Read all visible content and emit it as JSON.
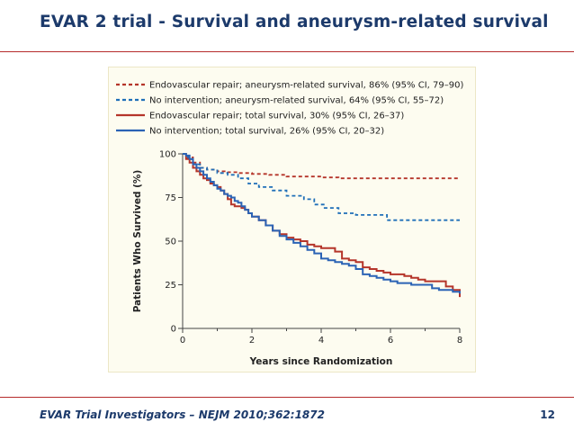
{
  "slide": {
    "title": "EVAR 2 trial - Survival and aneurysm-related survival",
    "citation": "EVAR Trial Investigators – NEJM 2010;362:1872",
    "page_number": "12",
    "accent_color": "#b52b2b",
    "title_color": "#1c3a6b"
  },
  "chart_data": {
    "type": "line",
    "title": "",
    "xlabel": "Years since Randomization",
    "ylabel": "Patients Who Survived (%)",
    "xlim": [
      0,
      8
    ],
    "ylim": [
      0,
      100
    ],
    "xticks": [
      "0",
      "2",
      "4",
      "6",
      "8"
    ],
    "yticks": [
      "0",
      "25",
      "50",
      "75",
      "100"
    ],
    "grid": false,
    "legend_position": "top",
    "series": [
      {
        "name": "Endovascular repair; aneurysm-related survival, 86% (95% CI, 79–90)",
        "color": "#b5352a",
        "dash": true,
        "x": [
          0,
          0.15,
          0.3,
          0.5,
          0.7,
          1.0,
          1.3,
          1.6,
          2.0,
          2.5,
          3.0,
          3.5,
          4.0,
          4.5,
          5.0,
          6.0,
          7.0,
          8.0
        ],
        "y": [
          100,
          98,
          95,
          92,
          91,
          90,
          89.5,
          89,
          88.5,
          88,
          87,
          87,
          86.5,
          86,
          86,
          86,
          86,
          86
        ]
      },
      {
        "name": "No intervention; aneurysm-related survival, 64% (95% CI, 55–72)",
        "color": "#1f6fb8",
        "dash": true,
        "x": [
          0,
          0.15,
          0.3,
          0.5,
          0.7,
          1.0,
          1.3,
          1.6,
          1.9,
          2.2,
          2.6,
          3.0,
          3.5,
          3.8,
          4.1,
          4.5,
          5.0,
          5.5,
          5.9,
          6.5,
          7.0,
          7.5,
          8.0
        ],
        "y": [
          100,
          97,
          94,
          92,
          91,
          89,
          88,
          86,
          83,
          81,
          79,
          76,
          74,
          71,
          69,
          66,
          65,
          65,
          62,
          62,
          62,
          62,
          62
        ]
      },
      {
        "name": "Endovascular repair; total survival, 30% (95% CI, 26–37)",
        "color": "#b5352a",
        "dash": false,
        "x": [
          0,
          0.1,
          0.2,
          0.3,
          0.4,
          0.5,
          0.6,
          0.7,
          0.8,
          0.9,
          1.0,
          1.1,
          1.2,
          1.3,
          1.4,
          1.5,
          1.6,
          1.7,
          1.8,
          1.9,
          2.0,
          2.2,
          2.4,
          2.6,
          2.8,
          3.0,
          3.2,
          3.4,
          3.6,
          3.8,
          4.0,
          4.2,
          4.4,
          4.6,
          4.8,
          5.0,
          5.2,
          5.4,
          5.6,
          5.8,
          6.0,
          6.2,
          6.4,
          6.6,
          6.8,
          7.0,
          7.2,
          7.4,
          7.6,
          7.8,
          8.0
        ],
        "y": [
          100,
          97,
          95,
          92,
          90,
          88,
          86,
          85,
          83,
          82,
          81,
          79,
          77,
          74,
          71,
          70,
          70,
          69,
          68,
          66,
          64,
          62,
          59,
          56,
          54,
          52,
          51,
          50,
          48,
          47,
          46,
          46,
          44,
          40,
          39,
          38,
          35,
          34,
          33,
          32,
          31,
          31,
          30,
          29,
          28,
          27,
          27,
          27,
          24,
          22,
          18
        ]
      },
      {
        "name": "No intervention; total survival, 26% (95% CI, 20–32)",
        "color": "#2b63b5",
        "dash": false,
        "x": [
          0,
          0.1,
          0.2,
          0.3,
          0.4,
          0.5,
          0.6,
          0.7,
          0.8,
          0.9,
          1.0,
          1.1,
          1.2,
          1.3,
          1.4,
          1.5,
          1.6,
          1.7,
          1.8,
          1.9,
          2.0,
          2.2,
          2.4,
          2.6,
          2.8,
          3.0,
          3.2,
          3.4,
          3.6,
          3.8,
          4.0,
          4.2,
          4.4,
          4.6,
          4.8,
          5.0,
          5.2,
          5.4,
          5.6,
          5.8,
          6.0,
          6.2,
          6.4,
          6.6,
          6.8,
          7.0,
          7.2,
          7.4,
          7.6,
          7.8,
          8.0
        ],
        "y": [
          100,
          99,
          97,
          94,
          92,
          90,
          88,
          86,
          84,
          82,
          80,
          79,
          77,
          76,
          75,
          73,
          72,
          70,
          68,
          66,
          64,
          62,
          59,
          56,
          53,
          51,
          49,
          47,
          45,
          43,
          40,
          39,
          38,
          37,
          36,
          34,
          31,
          30,
          29,
          28,
          27,
          26,
          26,
          25,
          25,
          25,
          23,
          22,
          22,
          21,
          20
        ]
      }
    ]
  }
}
